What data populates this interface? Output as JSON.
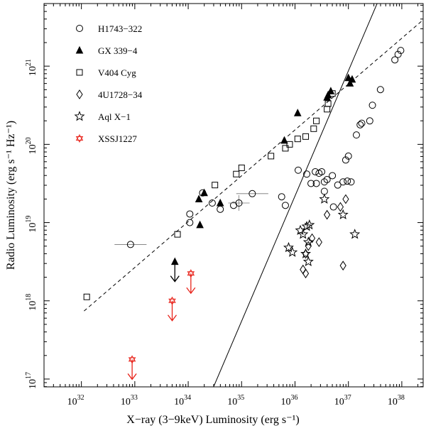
{
  "chart_data": {
    "type": "scatter",
    "xlabel": "X−ray (3−9keV) Luminosity  (erg s⁻¹)",
    "ylabel": "Radio Luminosity (erg s⁻¹ Hz⁻¹)",
    "x_scale": "log",
    "y_scale": "log",
    "xlim_log10": [
      31.3,
      38.4
    ],
    "ylim_log10": [
      16.9,
      21.8
    ],
    "x_ticks": [
      {
        "exp": 32,
        "base": "10",
        "sup": "32"
      },
      {
        "exp": 33,
        "base": "10",
        "sup": "33"
      },
      {
        "exp": 34,
        "base": "10",
        "sup": "34"
      },
      {
        "exp": 35,
        "base": "10",
        "sup": "35"
      },
      {
        "exp": 36,
        "base": "10",
        "sup": "36"
      },
      {
        "exp": 37,
        "base": "10",
        "sup": "37"
      },
      {
        "exp": 38,
        "base": "10",
        "sup": "38"
      }
    ],
    "y_ticks": [
      {
        "exp": 17,
        "base": "10",
        "sup": "17"
      },
      {
        "exp": 18,
        "base": "10",
        "sup": "18"
      },
      {
        "exp": 19,
        "base": "10",
        "sup": "19"
      },
      {
        "exp": 20,
        "base": "10",
        "sup": "20"
      },
      {
        "exp": 21,
        "base": "10",
        "sup": "21"
      }
    ],
    "fit_lines": [
      {
        "name": "dashed track",
        "style": "dashed",
        "x_log": [
          32.05,
          38.5
        ],
        "y_log": [
          17.87,
          21.65
        ]
      },
      {
        "name": "steep track",
        "style": "solid",
        "x_log": [
          34.4,
          37.55
        ],
        "y_log": [
          16.78,
          21.82
        ]
      }
    ],
    "series": [
      {
        "name": "H1743−322",
        "marker": "circle",
        "color": "#000000",
        "points": [
          [
            32.92,
            18.72,
            0.3,
            0
          ],
          [
            34.03,
            19.11,
            0,
            0
          ],
          [
            34.03,
            19.0,
            0,
            0
          ],
          [
            34.27,
            19.38,
            0,
            0
          ],
          [
            34.45,
            19.25,
            0,
            0
          ],
          [
            34.6,
            19.17,
            0,
            0
          ],
          [
            34.85,
            19.22,
            0,
            0
          ],
          [
            34.95,
            19.25,
            0.2,
            0.1
          ],
          [
            35.2,
            19.37,
            0.3,
            0
          ],
          [
            35.75,
            19.33,
            0,
            0
          ],
          [
            35.82,
            19.22,
            0,
            0
          ],
          [
            36.06,
            19.67,
            0,
            0
          ],
          [
            36.22,
            19.62,
            0,
            0
          ],
          [
            36.3,
            19.5,
            0,
            0
          ],
          [
            36.38,
            19.65,
            0,
            0
          ],
          [
            36.4,
            19.5,
            0,
            0
          ],
          [
            36.45,
            19.63,
            0,
            0
          ],
          [
            36.5,
            19.65,
            0,
            0
          ],
          [
            36.55,
            19.4,
            0,
            0
          ],
          [
            36.55,
            19.52,
            0,
            0
          ],
          [
            36.6,
            19.55,
            0,
            0
          ],
          [
            36.7,
            19.6,
            0,
            0
          ],
          [
            36.8,
            19.48,
            0,
            0
          ],
          [
            36.9,
            19.52,
            0,
            0
          ],
          [
            36.95,
            19.8,
            0,
            0
          ],
          [
            37.0,
            19.85,
            0,
            0
          ],
          [
            36.98,
            19.53,
            0,
            0
          ],
          [
            37.05,
            19.52,
            0,
            0
          ],
          [
            36.72,
            19.2,
            0,
            0
          ],
          [
            37.15,
            20.12,
            0,
            0
          ],
          [
            37.22,
            20.25,
            0,
            0
          ],
          [
            37.25,
            20.27,
            0,
            0
          ],
          [
            37.4,
            20.3,
            0,
            0
          ],
          [
            37.45,
            20.5,
            0,
            0
          ],
          [
            37.6,
            20.7,
            0,
            0
          ],
          [
            37.87,
            21.08,
            0,
            0
          ],
          [
            37.93,
            21.15,
            0,
            0
          ],
          [
            37.98,
            21.2,
            0,
            0
          ]
        ]
      },
      {
        "name": "GX 339−4",
        "marker": "triangle",
        "color": "#000000",
        "points": [
          [
            33.75,
            18.5
          ],
          [
            34.2,
            19.3
          ],
          [
            34.3,
            19.38
          ],
          [
            34.22,
            18.97
          ],
          [
            34.6,
            19.25
          ],
          [
            35.8,
            20.05
          ],
          [
            36.05,
            20.4
          ],
          [
            36.6,
            20.6
          ],
          [
            36.67,
            20.68
          ],
          [
            36.62,
            20.63
          ],
          [
            37.0,
            20.85
          ],
          [
            37.07,
            20.83
          ],
          [
            37.03,
            20.78
          ]
        ]
      },
      {
        "name": "V404 Cyg",
        "marker": "square",
        "color": "#000000",
        "points": [
          [
            32.1,
            18.05
          ],
          [
            33.8,
            18.85
          ],
          [
            34.5,
            19.48
          ],
          [
            34.9,
            19.62
          ],
          [
            35.0,
            19.7
          ],
          [
            35.55,
            19.85
          ],
          [
            35.82,
            19.95
          ],
          [
            35.9,
            20.0
          ],
          [
            36.05,
            20.07
          ],
          [
            36.35,
            20.2
          ],
          [
            36.62,
            20.52
          ],
          [
            36.6,
            20.45
          ],
          [
            36.4,
            20.3
          ],
          [
            36.2,
            20.1
          ],
          [
            36.7,
            20.65
          ]
        ]
      },
      {
        "name": "4U1728−34",
        "marker": "diamond",
        "color": "#000000",
        "points": [
          [
            36.15,
            18.4
          ],
          [
            36.2,
            18.35
          ],
          [
            36.2,
            18.6
          ],
          [
            36.25,
            18.7
          ],
          [
            36.32,
            18.8
          ],
          [
            36.45,
            18.75
          ],
          [
            36.6,
            19.1
          ],
          [
            36.85,
            19.2
          ],
          [
            36.95,
            19.3
          ],
          [
            36.9,
            18.45
          ]
        ]
      },
      {
        "name": "Aql X−1",
        "marker": "star",
        "color": "#000000",
        "points": [
          [
            35.88,
            18.68
          ],
          [
            35.95,
            18.62
          ],
          [
            36.1,
            18.9
          ],
          [
            36.15,
            18.85
          ],
          [
            36.22,
            18.95
          ],
          [
            36.27,
            18.97
          ],
          [
            36.25,
            18.75
          ],
          [
            36.2,
            18.6
          ],
          [
            36.25,
            18.5
          ],
          [
            36.55,
            19.3
          ],
          [
            36.9,
            19.1
          ],
          [
            37.12,
            18.85
          ]
        ]
      },
      {
        "name": "XSSJ1227",
        "marker": "star-of-david",
        "color": "#e8231a",
        "points": [
          [
            32.95,
            17.25
          ],
          [
            33.7,
            18.0
          ],
          [
            34.05,
            18.35
          ]
        ]
      }
    ],
    "upper_limits": [
      {
        "series": "GX 339−4",
        "x_log": 33.75,
        "y_log": 18.5,
        "color": "#000000"
      },
      {
        "series": "XSSJ1227",
        "x_log": 32.95,
        "y_log": 17.25,
        "color": "#e8231a"
      },
      {
        "series": "XSSJ1227",
        "x_log": 33.7,
        "y_log": 18.0,
        "color": "#e8231a"
      },
      {
        "series": "XSSJ1227",
        "x_log": 34.05,
        "y_log": 18.35,
        "color": "#e8231a"
      }
    ],
    "legend": {
      "placement": "top-left",
      "entries": [
        {
          "label": "H1743−322",
          "marker": "circle",
          "color": "#000000"
        },
        {
          "label": "GX 339−4",
          "marker": "triangle",
          "color": "#000000"
        },
        {
          "label": "V404 Cyg",
          "marker": "square",
          "color": "#000000"
        },
        {
          "label": "4U1728−34",
          "marker": "diamond",
          "color": "#000000"
        },
        {
          "label": "Aql X−1",
          "marker": "star",
          "color": "#000000"
        },
        {
          "label": "XSSJ1227",
          "marker": "star-of-david",
          "color": "#e8231a"
        }
      ]
    }
  }
}
